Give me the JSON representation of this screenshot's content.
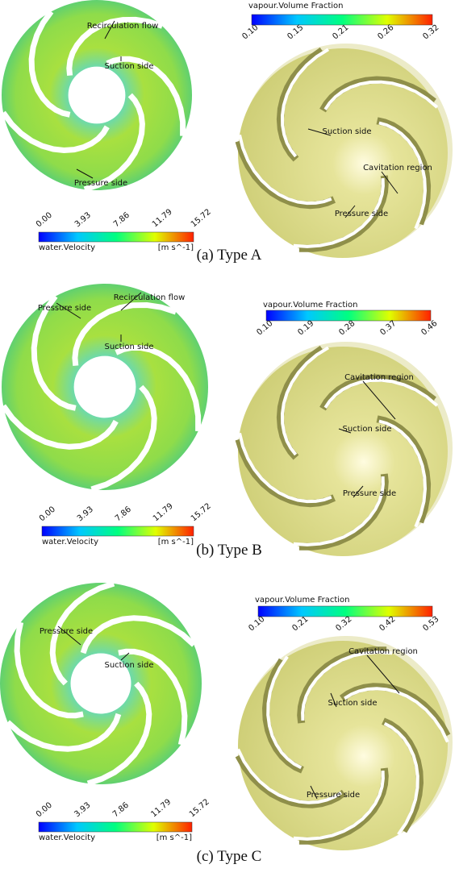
{
  "panels": [
    {
      "caption": "(a) Type A",
      "velocity": {
        "label": "water.Velocity",
        "unit": "[m s^-1]",
        "ticks": [
          "0.00",
          "3.93",
          "7.86",
          "11.79",
          "15.72"
        ]
      },
      "vapour": {
        "title": "vapour.Volume Fraction",
        "ticks": [
          "0.10",
          "0.15",
          "0.21",
          "0.26",
          "0.32"
        ]
      },
      "left_annotations": [
        "Recirculation flow",
        "Suction side",
        "Pressure side"
      ],
      "right_annotations": [
        "Cavitation region",
        "Suction side",
        "Pressure side"
      ]
    },
    {
      "caption": "(b) Type B",
      "velocity": {
        "label": "water.Velocity",
        "unit": "[m s^-1]",
        "ticks": [
          "0.00",
          "3.93",
          "7.86",
          "11.79",
          "15.72"
        ]
      },
      "vapour": {
        "title": "vapour.Volume Fraction",
        "ticks": [
          "0.10",
          "0.19",
          "0.28",
          "0.37",
          "0.46"
        ]
      },
      "left_annotations": [
        "Pressure side",
        "Recirculation flow",
        "Suction side"
      ],
      "right_annotations": [
        "Cavitation region",
        "Suction side",
        "Pressure side"
      ]
    },
    {
      "caption": "(c) Type C",
      "velocity": {
        "label": "water.Velocity",
        "unit": "[m s^-1]",
        "ticks": [
          "0.00",
          "3.93",
          "7.86",
          "11.79",
          "15.72"
        ]
      },
      "vapour": {
        "title": "vapour.Volume Fraction",
        "ticks": [
          "0.10",
          "0.21",
          "0.32",
          "0.42",
          "0.53"
        ]
      },
      "left_annotations": [
        "Pressure side",
        "Suction side"
      ],
      "right_annotations": [
        "Cavitation region",
        "Suction side",
        "Pressure side"
      ]
    }
  ]
}
